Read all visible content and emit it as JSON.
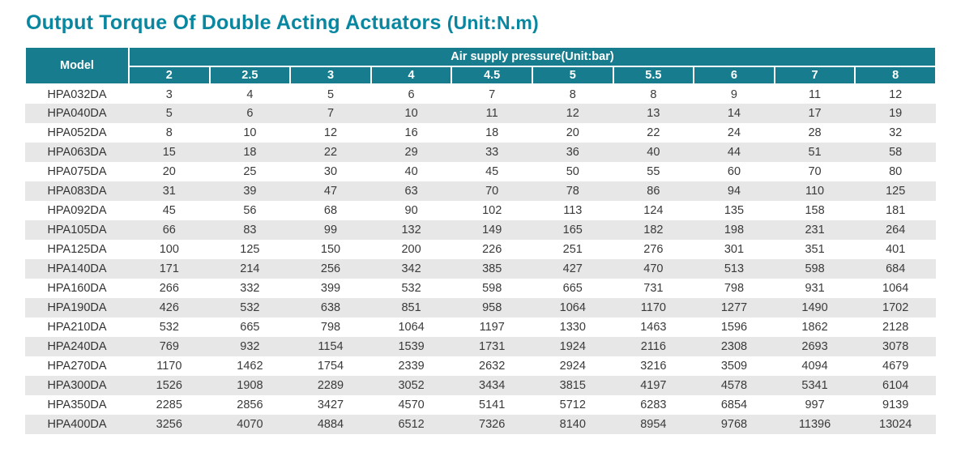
{
  "page": {
    "title": "Output Torque Of Double Acting Actuators",
    "title_unit": "(Unit:N.m)"
  },
  "colors": {
    "title_teal": "#0a87a0",
    "header_teal": "#177d8e",
    "row_alt_gray": "#e7e7e7"
  },
  "chart_data": {
    "type": "table",
    "title": "Output Torque Of Double Acting Actuators",
    "unit_label": "(Unit:N.m)",
    "model_header": "Model",
    "group_header": "Air supply pressure(Unit:bar)",
    "columns": [
      "2",
      "2.5",
      "3",
      "4",
      "4.5",
      "5",
      "5.5",
      "6",
      "7",
      "8"
    ],
    "rows": [
      {
        "model": "HPA032DA",
        "values": [
          3,
          4,
          5,
          6,
          7,
          8,
          8,
          9,
          11,
          12
        ]
      },
      {
        "model": "HPA040DA",
        "values": [
          5,
          6,
          7,
          10,
          11,
          12,
          13,
          14,
          17,
          19
        ]
      },
      {
        "model": "HPA052DA",
        "values": [
          8,
          10,
          12,
          16,
          18,
          20,
          22,
          24,
          28,
          32
        ]
      },
      {
        "model": "HPA063DA",
        "values": [
          15,
          18,
          22,
          29,
          33,
          36,
          40,
          44,
          51,
          58
        ]
      },
      {
        "model": "HPA075DA",
        "values": [
          20,
          25,
          30,
          40,
          45,
          50,
          55,
          60,
          70,
          80
        ]
      },
      {
        "model": "HPA083DA",
        "values": [
          31,
          39,
          47,
          63,
          70,
          78,
          86,
          94,
          110,
          125
        ]
      },
      {
        "model": "HPA092DA",
        "values": [
          45,
          56,
          68,
          90,
          102,
          113,
          124,
          135,
          158,
          181
        ]
      },
      {
        "model": "HPA105DA",
        "values": [
          66,
          83,
          99,
          132,
          149,
          165,
          182,
          198,
          231,
          264
        ]
      },
      {
        "model": "HPA125DA",
        "values": [
          100,
          125,
          150,
          200,
          226,
          251,
          276,
          301,
          351,
          401
        ]
      },
      {
        "model": "HPA140DA",
        "values": [
          171,
          214,
          256,
          342,
          385,
          427,
          470,
          513,
          598,
          684
        ]
      },
      {
        "model": "HPA160DA",
        "values": [
          266,
          332,
          399,
          532,
          598,
          665,
          731,
          798,
          931,
          1064
        ]
      },
      {
        "model": "HPA190DA",
        "values": [
          426,
          532,
          638,
          851,
          958,
          1064,
          1170,
          1277,
          1490,
          1702
        ]
      },
      {
        "model": "HPA210DA",
        "values": [
          532,
          665,
          798,
          1064,
          1197,
          1330,
          1463,
          1596,
          1862,
          2128
        ]
      },
      {
        "model": "HPA240DA",
        "values": [
          769,
          932,
          1154,
          1539,
          1731,
          1924,
          2116,
          2308,
          2693,
          3078
        ]
      },
      {
        "model": "HPA270DA",
        "values": [
          1170,
          1462,
          1754,
          2339,
          2632,
          2924,
          3216,
          3509,
          4094,
          4679
        ]
      },
      {
        "model": "HPA300DA",
        "values": [
          1526,
          1908,
          2289,
          3052,
          3434,
          3815,
          4197,
          4578,
          5341,
          6104
        ]
      },
      {
        "model": "HPA350DA",
        "values": [
          2285,
          2856,
          3427,
          4570,
          5141,
          5712,
          6283,
          6854,
          997,
          9139
        ]
      },
      {
        "model": "HPA400DA",
        "values": [
          3256,
          4070,
          4884,
          6512,
          7326,
          8140,
          8954,
          9768,
          11396,
          13024
        ]
      }
    ]
  }
}
